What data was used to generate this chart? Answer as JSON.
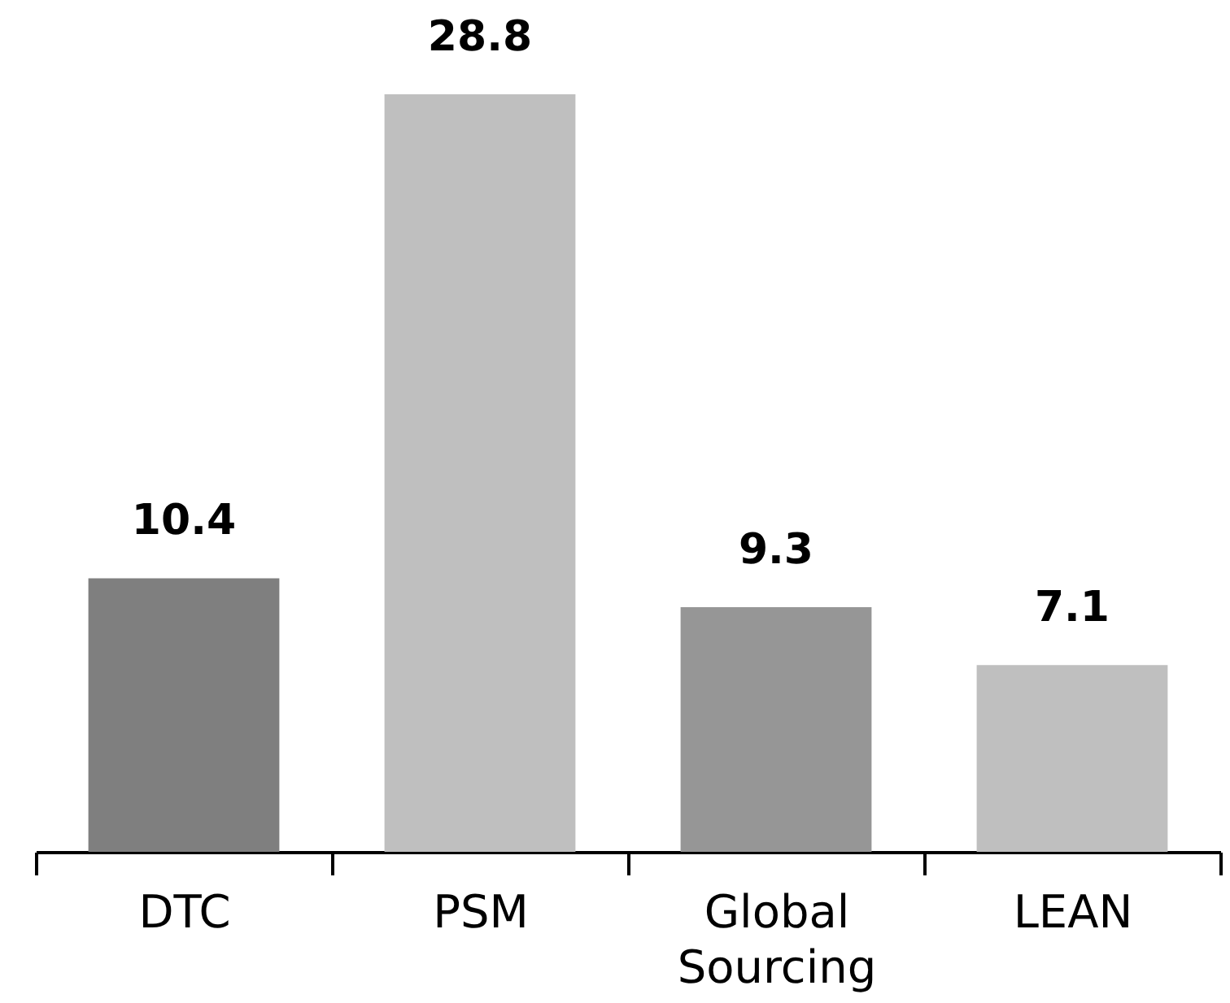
{
  "chart_data": {
    "type": "bar",
    "categories": [
      "DTC",
      "PSM",
      "Global Sourcing",
      "LEAN"
    ],
    "values": [
      10.4,
      28.8,
      9.3,
      7.1
    ],
    "colors": [
      "#7f7f7f",
      "#bfbfbf",
      "#969696",
      "#bfbfbf"
    ],
    "data_labels": true,
    "tick_labels": "x"
  }
}
